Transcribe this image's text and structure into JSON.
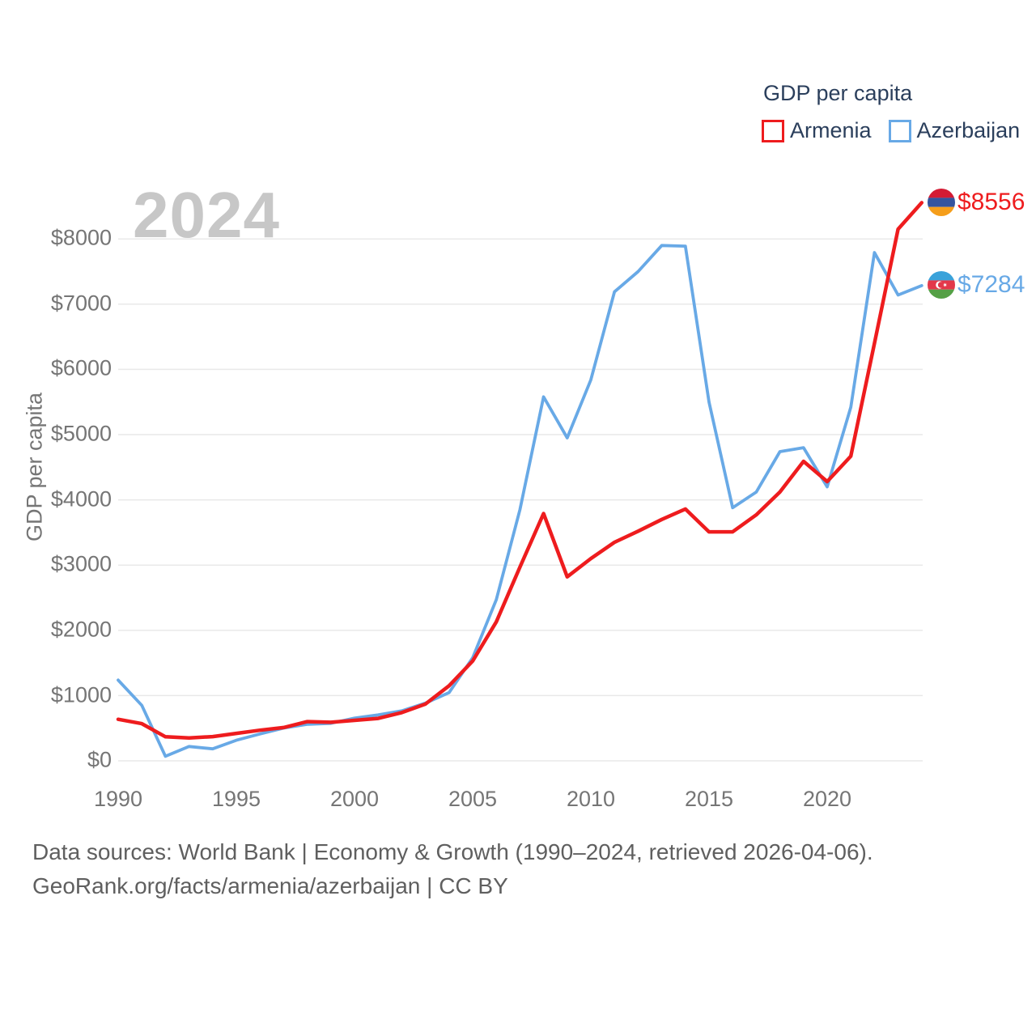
{
  "watermark": "2024",
  "y_axis_title": "GDP per capita",
  "legend": {
    "title": "GDP per capita",
    "items": [
      {
        "label": "Armenia",
        "color": "#ee1c1e"
      },
      {
        "label": "Azerbaijan",
        "color": "#68a9e6"
      }
    ]
  },
  "footer": {
    "line1": "Data sources: World Bank | Economy & Growth (1990–2024, retrieved 2026-04-06).",
    "line2": "GeoRank.org/facts/armenia/azerbaijan | CC BY"
  },
  "icons": [
    {
      "name": "armenia-flag-icon",
      "colors": [
        "#d41b34",
        "#34549e",
        "#f59e1a"
      ]
    },
    {
      "name": "azerbaijan-flag-icon",
      "colors": [
        "#3aa2da",
        "#e3384a",
        "#55a046"
      ]
    }
  ],
  "chart_data": {
    "type": "line",
    "title": "GDP per capita",
    "ylabel": "GDP per capita",
    "xlabel": "",
    "grid": true,
    "legend_position": "top-right",
    "ylim": [
      0,
      8556
    ],
    "xlim": [
      1990,
      2024
    ],
    "x": [
      1990,
      1991,
      1992,
      1993,
      1994,
      1995,
      1996,
      1997,
      1998,
      1999,
      2000,
      2001,
      2002,
      2003,
      2004,
      2005,
      2006,
      2007,
      2008,
      2009,
      2010,
      2011,
      2012,
      2013,
      2014,
      2015,
      2016,
      2017,
      2018,
      2019,
      2020,
      2021,
      2022,
      2023,
      2024
    ],
    "series": [
      {
        "name": "Armenia",
        "color": "#ee1c1e",
        "values": [
          637,
          570,
          369,
          350,
          371,
          420,
          469,
          510,
          600,
          590,
          620,
          650,
          740,
          870,
          1150,
          1530,
          2130,
          2970,
          3790,
          2820,
          3100,
          3350,
          3520,
          3700,
          3860,
          3510,
          3510,
          3770,
          4120,
          4590,
          4280,
          4670,
          6400,
          8150,
          8556
        ]
      },
      {
        "name": "Azerbaijan",
        "color": "#68a9e6",
        "values": [
          1237,
          850,
          70,
          220,
          184,
          315,
          412,
          502,
          560,
          575,
          655,
          705,
          765,
          885,
          1045,
          1580,
          2470,
          3850,
          5580,
          4950,
          5840,
          7190,
          7500,
          7900,
          7890,
          5500,
          3880,
          4120,
          4740,
          4800,
          4200,
          5420,
          7790,
          7140,
          7284
        ]
      }
    ],
    "ytick_values": [
      0,
      1000,
      2000,
      3000,
      4000,
      5000,
      6000,
      7000,
      8000
    ],
    "ytick_labels": [
      "$0",
      "$1000",
      "$2000",
      "$3000",
      "$4000",
      "$5000",
      "$6000",
      "$7000",
      "$8000"
    ],
    "xtick_values": [
      1990,
      1995,
      2000,
      2005,
      2010,
      2015,
      2020
    ],
    "xtick_labels": [
      "1990",
      "1995",
      "2000",
      "2005",
      "2010",
      "2015",
      "2020"
    ],
    "end_labels": [
      {
        "series": "Armenia",
        "text": "$8556",
        "flag": "armenia-flag-icon"
      },
      {
        "series": "Azerbaijan",
        "text": "$7284",
        "flag": "azerbaijan-flag-icon"
      }
    ]
  }
}
